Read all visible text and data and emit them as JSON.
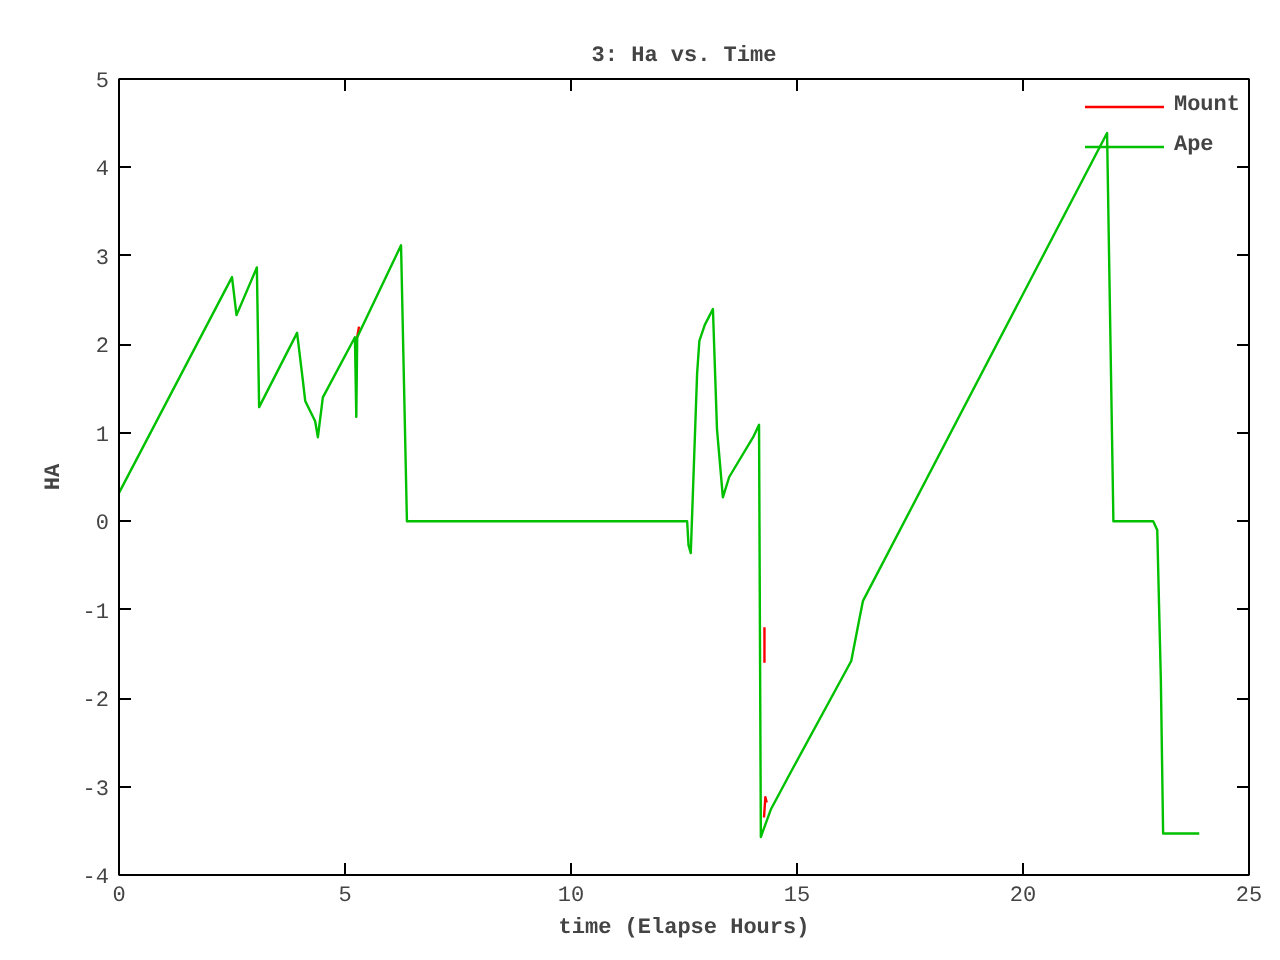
{
  "chart_data": {
    "type": "line",
    "title": "3: Ha vs. Time",
    "xlabel": "time (Elapse Hours)",
    "ylabel": "HA",
    "xlim": [
      0,
      25
    ],
    "ylim": [
      -4,
      5
    ],
    "xticks": [
      0,
      5,
      10,
      15,
      20,
      25
    ],
    "yticks": [
      -4,
      -3,
      -2,
      -1,
      0,
      1,
      2,
      3,
      4,
      5
    ],
    "grid": false,
    "legend": "top right",
    "marker": "none",
    "line_style": "solid",
    "series": [
      {
        "name": "Mount",
        "color": "#ff0000",
        "x": [
          5.27,
          5.31,
          null,
          14.28,
          14.28,
          null,
          14.27,
          14.3,
          14.33
        ],
        "values": [
          2.08,
          2.2,
          null,
          -1.2,
          -1.6,
          null,
          -3.35,
          -3.12,
          -3.18
        ]
      },
      {
        "name": "Ape",
        "color": "#00c000",
        "x": [
          0,
          2.5,
          2.6,
          3.05,
          3.1,
          3.94,
          4.07,
          4.12,
          4.34,
          4.4,
          4.51,
          5.22,
          5.25,
          5.27,
          6.24,
          6.37,
          12.57,
          12.6,
          12.65,
          12.79,
          12.84,
          12.96,
          13.14,
          13.23,
          13.36,
          13.5,
          14.03,
          14.16,
          14.2,
          14.42,
          14.87,
          16.2,
          16.37,
          16.46,
          21.86,
          22.0,
          22.88,
          22.97,
          23.05,
          23.1,
          23.9
        ],
        "values": [
          0.32,
          2.76,
          2.33,
          2.87,
          1.29,
          2.13,
          1.58,
          1.36,
          1.13,
          0.95,
          1.4,
          2.08,
          1.18,
          2.08,
          3.12,
          0,
          0,
          -0.27,
          -0.36,
          1.67,
          2.04,
          2.22,
          2.4,
          1.04,
          0.27,
          0.5,
          0.95,
          1.09,
          -3.57,
          -3.26,
          -2.83,
          -1.58,
          -1.13,
          -0.9,
          4.39,
          0,
          0,
          -0.1,
          -1.8,
          -3.53,
          -3.53
        ]
      }
    ]
  }
}
